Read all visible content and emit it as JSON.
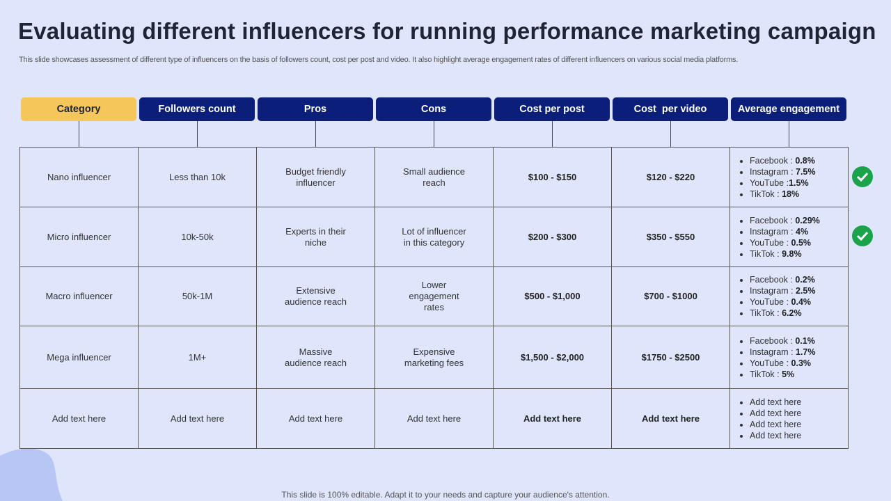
{
  "header": {
    "title": "Evaluating different influencers for running performance marketing campaign",
    "subtitle": "This slide showcases assessment of different type  of influencers on the basis of followers count, cost per post and video. It also highlight average engagement rates of different influencers on various social media platforms."
  },
  "table": {
    "columns": [
      "Category",
      "Followers count",
      "Pros",
      "Cons",
      "Cost per post",
      "Cost  per video",
      "Average engagement"
    ],
    "rows": [
      [
        "Nano influencer",
        "Less than 10k",
        "Budget friendly influencer",
        "Small audience reach",
        "$100 - $150",
        "$120 - $220",
        [
          {
            "label": "Facebook : ",
            "value": "0.8%"
          },
          {
            "label": "Instagram : ",
            "value": "7.5%"
          },
          {
            "label": "YouTube :",
            "value": "1.5%"
          },
          {
            "label": "TikTok : ",
            "value": "18%"
          }
        ]
      ],
      [
        "Micro influencer",
        "10k-50k",
        "Experts in their niche",
        "Lot of influencer in this category",
        "$200 - $300",
        "$350 - $550",
        [
          {
            "label": "Facebook : ",
            "value": "0.29%"
          },
          {
            "label": "Instagram : ",
            "value": "4%"
          },
          {
            "label": "YouTube : ",
            "value": "0.5%"
          },
          {
            "label": "TikTok : ",
            "value": "9.8%"
          }
        ]
      ],
      [
        "Macro influencer",
        "50k-1M",
        "Extensive audience reach",
        "Lower engagement rates",
        "$500 - $1,000",
        "$700 - $1000",
        [
          {
            "label": "Facebook : ",
            "value": "0.2%"
          },
          {
            "label": "Instagram : ",
            "value": "2.5%"
          },
          {
            "label": "YouTube : ",
            "value": "0.4%"
          },
          {
            "label": "TikTok : ",
            "value": "6.2%"
          }
        ]
      ],
      [
        "Mega influencer",
        "1M+",
        "Massive audience reach",
        "Expensive marketing fees",
        "$1,500 - $2,000",
        "$1750 - $2500",
        [
          {
            "label": "Facebook : ",
            "value": "0.1%"
          },
          {
            "label": "Instagram : ",
            "value": "1.7%"
          },
          {
            "label": "YouTube : ",
            "value": "0.3%"
          },
          {
            "label": "TikTok : ",
            "value": "5%"
          }
        ]
      ],
      [
        "Add text here",
        "Add text here",
        "Add text here",
        "Add text here",
        "Add text here",
        "Add text here",
        [
          "Add text here",
          "Add text here",
          "Add text here",
          "Add text here"
        ]
      ]
    ]
  },
  "footer": "This slide is 100% editable. Adapt it to your needs and capture your audience's attention."
}
